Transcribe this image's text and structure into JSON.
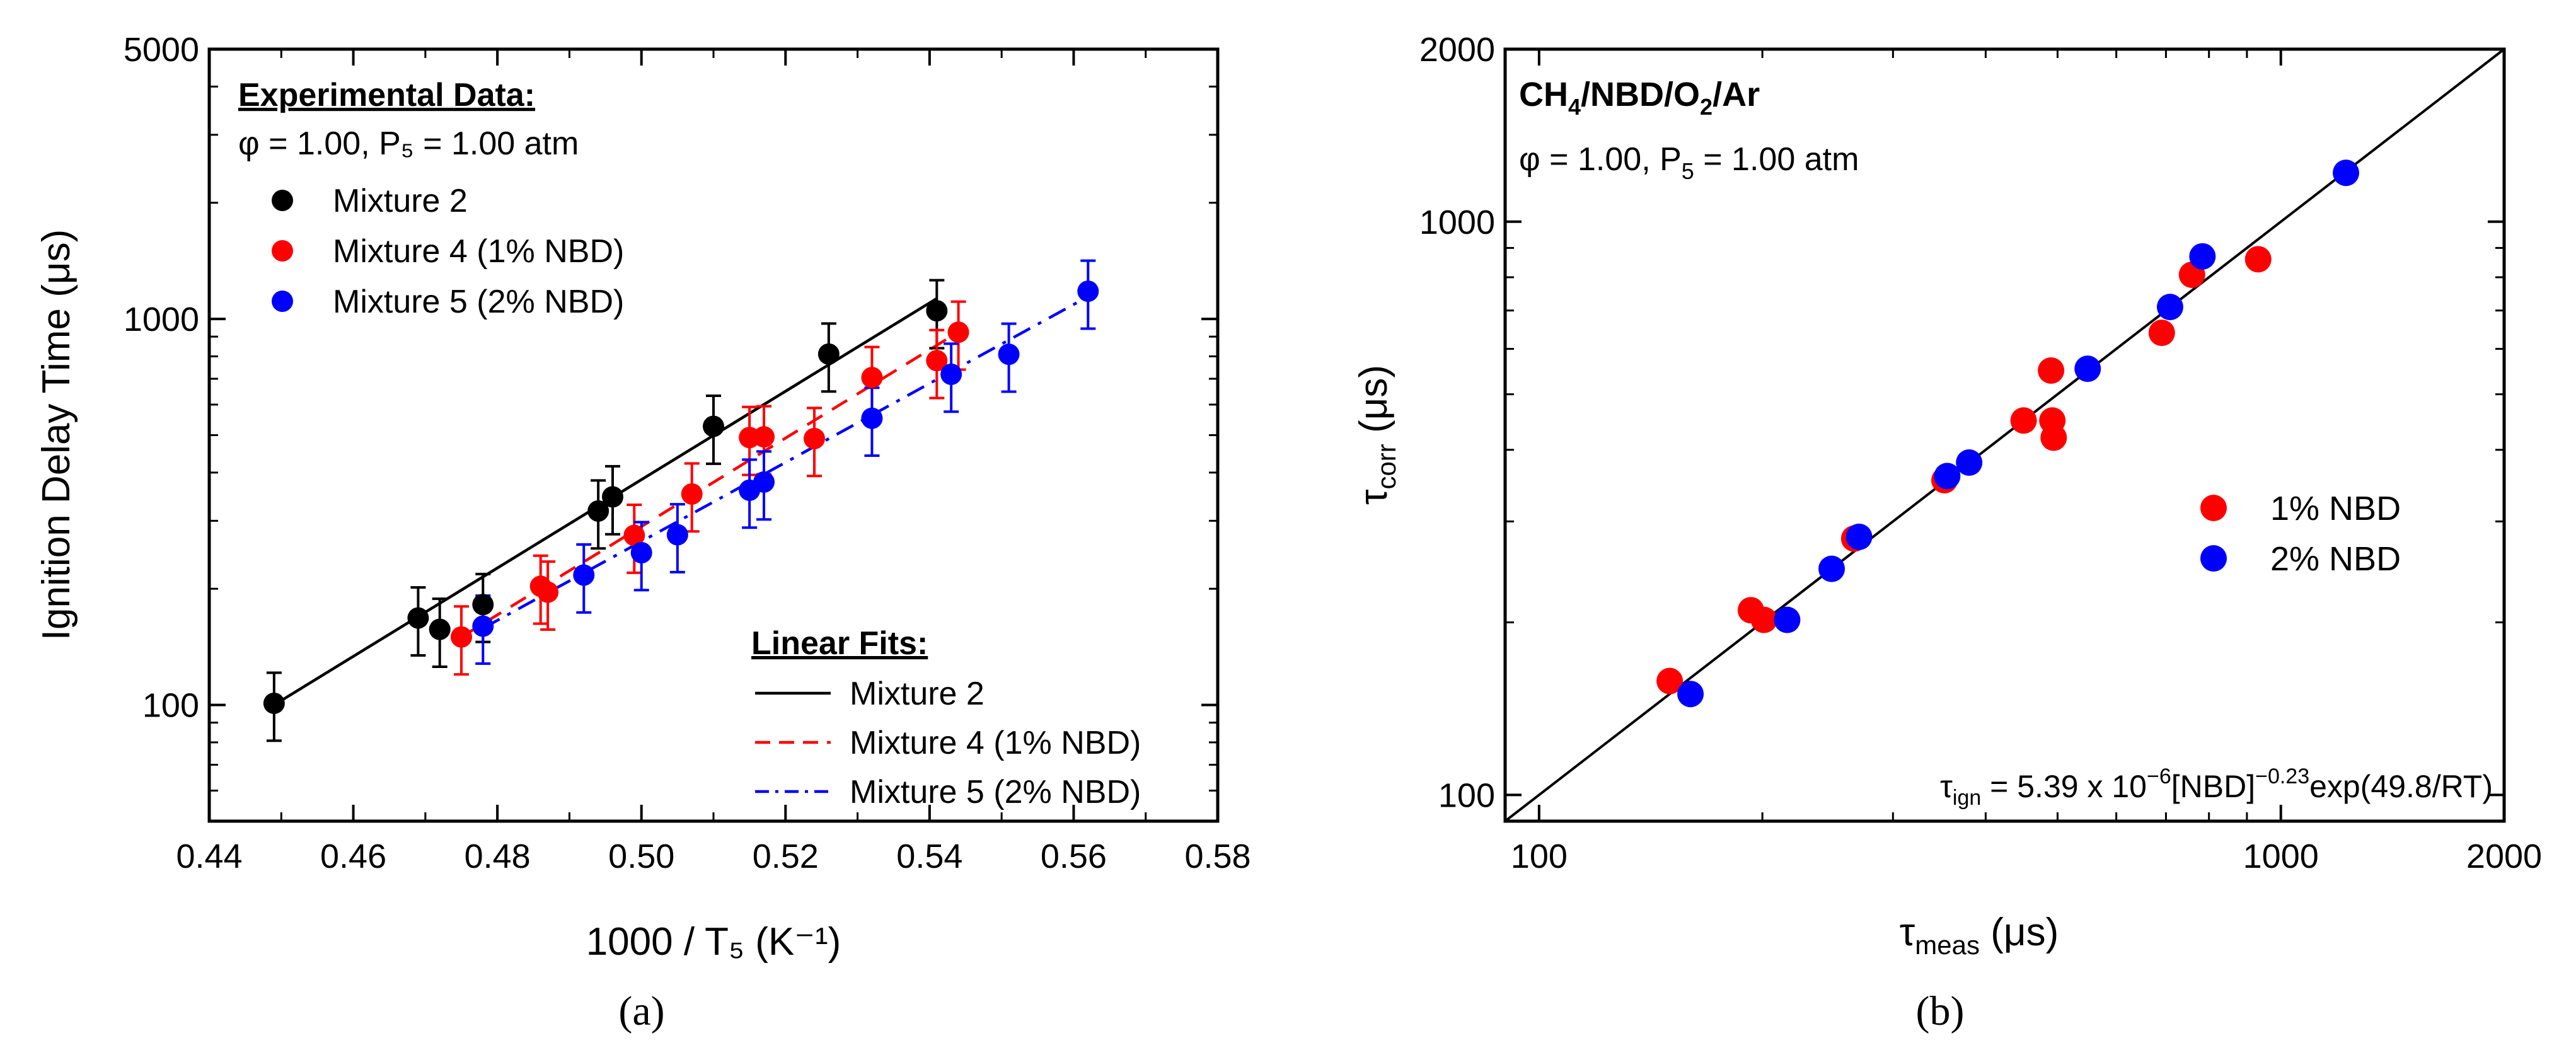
{
  "chart_data": [
    {
      "panel_label": "(a)",
      "type": "scatter",
      "xlabel": "1000 / T₅ (K⁻¹)",
      "ylabel": "Ignition Delay Time (μs)",
      "xlim": [
        0.44,
        0.58
      ],
      "ylim": [
        50,
        5000
      ],
      "yscale": "log",
      "xticks": [
        0.44,
        0.46,
        0.48,
        0.5,
        0.52,
        0.54,
        0.56,
        0.58
      ],
      "xtick_labels": [
        "0.44",
        "0.46",
        "0.48",
        "0.50",
        "0.52",
        "0.54",
        "0.56",
        "0.58"
      ],
      "yticks": [
        100,
        1000,
        5000
      ],
      "ytick_labels": [
        "100",
        "1000",
        "5000"
      ],
      "legend_title": "Experimental Data:",
      "legend_subtitle": "φ = 1.00, P₅ = 1.00 atm",
      "fit_legend_title": "Linear Fits:",
      "series": [
        {
          "name": "Mixture 2",
          "fit_name": "Mixture 2",
          "color": "#000000",
          "fit_style": "solid",
          "error_pct": 20,
          "x": [
            0.449,
            0.469,
            0.472,
            0.478,
            0.494,
            0.496,
            0.51,
            0.526,
            0.541
          ],
          "y": [
            101,
            168,
            157,
            182,
            318,
            346,
            527,
            811,
            1050
          ],
          "fit": {
            "x0": 0.449,
            "x1": 0.541,
            "y0": 100,
            "y1": 1130
          }
        },
        {
          "name": "Mixture 4 (1% NBD)",
          "fit_name": "Mixture 4 (1% NBD)",
          "color": "#ff0000",
          "fit_style": "dashed",
          "error_pct": 20,
          "x": [
            0.475,
            0.486,
            0.487,
            0.499,
            0.507,
            0.515,
            0.517,
            0.524,
            0.532,
            0.541,
            0.544
          ],
          "y": [
            150,
            203,
            196,
            275,
            352,
            493,
            495,
            490,
            705,
            780,
            924
          ],
          "fit": {
            "x0": 0.475,
            "x1": 0.544,
            "y0": 150,
            "y1": 925
          }
        },
        {
          "name": "Mixture 5 (2% NBD)",
          "fit_name": "Mixture 5 (2% NBD)",
          "color": "#0000ff",
          "fit_style": "dashdot",
          "error_pct": 20,
          "x": [
            0.478,
            0.492,
            0.5,
            0.505,
            0.515,
            0.517,
            0.532,
            0.543,
            0.551,
            0.562
          ],
          "y": [
            160,
            217,
            248,
            276,
            360,
            378,
            553,
            719,
            810,
            1180
          ],
          "fit": {
            "x0": 0.478,
            "x1": 0.563,
            "y0": 158,
            "y1": 1170
          }
        }
      ]
    },
    {
      "panel_label": "(b)",
      "type": "scatter",
      "xlabel": "τmeas (μs)",
      "ylabel": "τcorr (μs)",
      "xlim": [
        90,
        2000
      ],
      "ylim": [
        90,
        2000
      ],
      "xscale": "log",
      "yscale": "log",
      "xticks": [
        100,
        1000,
        2000
      ],
      "xtick_labels": [
        "100",
        "1000",
        "2000"
      ],
      "yticks": [
        100,
        1000,
        2000
      ],
      "ytick_labels": [
        "100",
        "1000",
        "2000"
      ],
      "title_parts": {
        "ch": "CH",
        "s4": "4",
        "nbd": "/NBD/O",
        "s2": "2",
        "ar": "/Ar"
      },
      "subtitle_parts": {
        "a": "φ = 1.00, P",
        "sub": "5",
        "b": " = 1.00 atm"
      },
      "correlation_parts": {
        "tau": "τ",
        "sub": "ign",
        "eq": " = 5.39 x 10",
        "exp1": "−6",
        "mid": "[NBD]",
        "exp2": "−0.23",
        "end": "exp(49.8/RT)"
      },
      "identity_line": {
        "from": 90,
        "to": 2000
      },
      "series": [
        {
          "name": "1% NBD",
          "color": "#ff0000",
          "x": [
            150,
            193,
            201,
            266,
            352,
            450,
            490,
            492,
            494,
            691,
            759,
            932
          ],
          "y": [
            158,
            210,
            202,
            280,
            354,
            450,
            550,
            450,
            420,
            640,
            808,
            860
          ]
        },
        {
          "name": "2% NBD",
          "color": "#0000ff",
          "x": [
            160,
            216,
            248,
            270,
            355,
            380,
            549,
            709,
            784,
            1224
          ],
          "y": [
            150,
            202,
            248,
            282,
            360,
            380,
            554,
            710,
            870,
            1217
          ]
        }
      ]
    }
  ]
}
